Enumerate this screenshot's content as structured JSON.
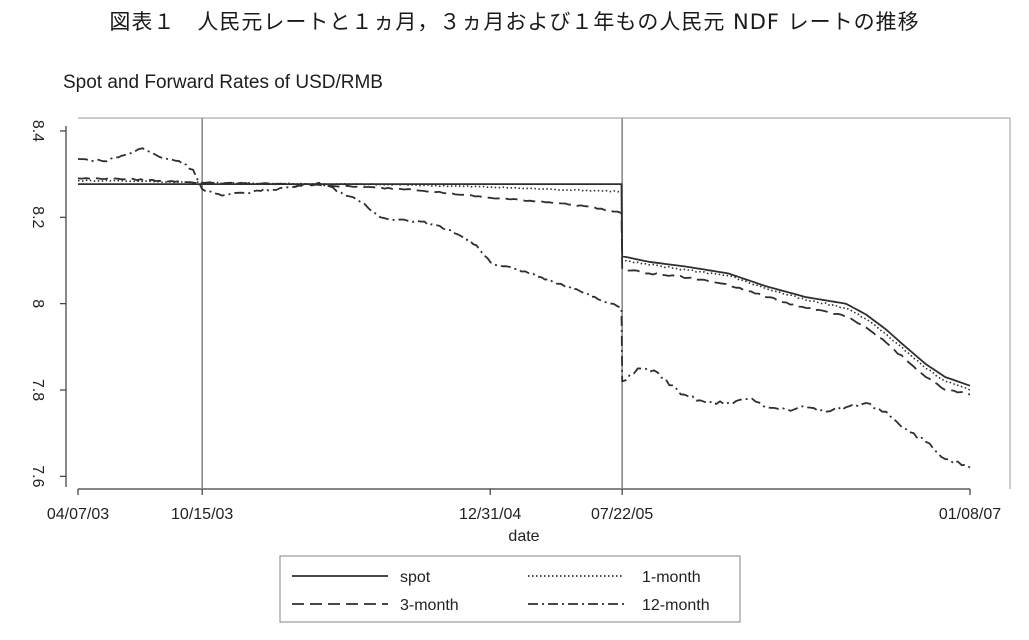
{
  "figure": {
    "caption": "図表１　人民元レートと１ヵ月，３ヵ月および１年もの人民元 NDF レートの推移"
  },
  "chart_data": {
    "type": "line",
    "title": "Spot and Forward Rates of USD/RMB",
    "xlabel": "date",
    "ylabel": "",
    "x_ticks": [
      "04/07/03",
      "10/15/03",
      "12/31/04",
      "07/22/05",
      "01/08/07"
    ],
    "y_ticks": [
      "7.6",
      "7.8",
      "8",
      "8.2",
      "8.4"
    ],
    "ylim": [
      7.58,
      8.43
    ],
    "xlim": [
      "2003-04-07",
      "2007-01-08"
    ],
    "vertical_reference_lines": [
      "10/15/03",
      "07/22/05"
    ],
    "grid": false,
    "legend_position": "bottom",
    "series": [
      {
        "name": "spot",
        "style": "solid",
        "points": [
          [
            "2003-04-07",
            8.277
          ],
          [
            "2003-10-15",
            8.277
          ],
          [
            "2004-06-01",
            8.277
          ],
          [
            "2005-01-01",
            8.277
          ],
          [
            "2005-07-21",
            8.277
          ],
          [
            "2005-07-22",
            8.11
          ],
          [
            "2005-09-01",
            8.097
          ],
          [
            "2005-11-01",
            8.085
          ],
          [
            "2006-01-01",
            8.07
          ],
          [
            "2006-03-01",
            8.04
          ],
          [
            "2006-05-01",
            8.015
          ],
          [
            "2006-07-01",
            8.0
          ],
          [
            "2006-08-01",
            7.975
          ],
          [
            "2006-09-01",
            7.94
          ],
          [
            "2006-10-01",
            7.9
          ],
          [
            "2006-11-01",
            7.86
          ],
          [
            "2006-12-01",
            7.83
          ],
          [
            "2007-01-08",
            7.81
          ]
        ]
      },
      {
        "name": "1-month",
        "style": "dotted",
        "points": [
          [
            "2003-04-07",
            8.285
          ],
          [
            "2003-06-01",
            8.285
          ],
          [
            "2003-10-15",
            8.28
          ],
          [
            "2004-03-01",
            8.278
          ],
          [
            "2004-09-01",
            8.275
          ],
          [
            "2005-01-01",
            8.27
          ],
          [
            "2005-04-01",
            8.265
          ],
          [
            "2005-07-21",
            8.26
          ],
          [
            "2005-07-22",
            8.1
          ],
          [
            "2005-09-01",
            8.09
          ],
          [
            "2005-11-01",
            8.078
          ],
          [
            "2006-01-01",
            8.065
          ],
          [
            "2006-03-01",
            8.035
          ],
          [
            "2006-05-01",
            8.008
          ],
          [
            "2006-07-01",
            7.99
          ],
          [
            "2006-08-01",
            7.965
          ],
          [
            "2006-09-01",
            7.93
          ],
          [
            "2006-10-01",
            7.89
          ],
          [
            "2006-11-01",
            7.85
          ],
          [
            "2006-12-01",
            7.82
          ],
          [
            "2007-01-08",
            7.8
          ]
        ]
      },
      {
        "name": "3-month",
        "style": "dashed",
        "points": [
          [
            "2003-04-07",
            8.29
          ],
          [
            "2003-06-01",
            8.29
          ],
          [
            "2003-10-15",
            8.28
          ],
          [
            "2004-03-01",
            8.277
          ],
          [
            "2004-09-01",
            8.265
          ],
          [
            "2005-01-01",
            8.245
          ],
          [
            "2005-04-01",
            8.235
          ],
          [
            "2005-06-01",
            8.225
          ],
          [
            "2005-07-21",
            8.21
          ],
          [
            "2005-07-22",
            8.08
          ],
          [
            "2005-09-01",
            8.07
          ],
          [
            "2005-11-01",
            8.06
          ],
          [
            "2006-01-01",
            8.045
          ],
          [
            "2006-03-01",
            8.015
          ],
          [
            "2006-05-01",
            7.99
          ],
          [
            "2006-07-01",
            7.97
          ],
          [
            "2006-08-01",
            7.945
          ],
          [
            "2006-09-01",
            7.91
          ],
          [
            "2006-10-01",
            7.87
          ],
          [
            "2006-11-01",
            7.83
          ],
          [
            "2006-12-01",
            7.8
          ],
          [
            "2007-01-08",
            7.79
          ]
        ]
      },
      {
        "name": "12-month",
        "style": "dash-dot",
        "points": [
          [
            "2003-04-07",
            8.335
          ],
          [
            "2003-05-15",
            8.33
          ],
          [
            "2003-06-20",
            8.345
          ],
          [
            "2003-07-15",
            8.36
          ],
          [
            "2003-08-10",
            8.34
          ],
          [
            "2003-09-10",
            8.33
          ],
          [
            "2003-10-01",
            8.31
          ],
          [
            "2003-10-15",
            8.265
          ],
          [
            "2003-11-15",
            8.25
          ],
          [
            "2004-01-01",
            8.26
          ],
          [
            "2004-03-01",
            8.27
          ],
          [
            "2004-04-15",
            8.28
          ],
          [
            "2004-06-15",
            8.235
          ],
          [
            "2004-07-15",
            8.2
          ],
          [
            "2004-09-15",
            8.19
          ],
          [
            "2004-11-01",
            8.17
          ],
          [
            "2004-12-10",
            8.135
          ],
          [
            "2005-01-01",
            8.095
          ],
          [
            "2005-03-01",
            8.07
          ],
          [
            "2005-05-01",
            8.04
          ],
          [
            "2005-06-15",
            8.01
          ],
          [
            "2005-07-21",
            7.99
          ],
          [
            "2005-07-22",
            7.82
          ],
          [
            "2005-08-15",
            7.85
          ],
          [
            "2005-09-15",
            7.84
          ],
          [
            "2005-10-20",
            7.79
          ],
          [
            "2005-12-01",
            7.77
          ],
          [
            "2006-01-01",
            7.77
          ],
          [
            "2006-02-01",
            7.78
          ],
          [
            "2006-03-01",
            7.76
          ],
          [
            "2006-04-01",
            7.755
          ],
          [
            "2006-05-01",
            7.76
          ],
          [
            "2006-06-01",
            7.75
          ],
          [
            "2006-07-01",
            7.76
          ],
          [
            "2006-08-01",
            7.77
          ],
          [
            "2006-09-01",
            7.75
          ],
          [
            "2006-10-01",
            7.71
          ],
          [
            "2006-11-01",
            7.68
          ],
          [
            "2006-12-01",
            7.64
          ],
          [
            "2007-01-08",
            7.62
          ]
        ]
      }
    ]
  },
  "legend": {
    "items": [
      {
        "name": "spot",
        "style": "solid"
      },
      {
        "name": "1-month",
        "style": "dotted"
      },
      {
        "name": "3-month",
        "style": "dashed"
      },
      {
        "name": "12-month",
        "style": "dash-dot"
      }
    ]
  },
  "colors": {
    "line": "#2f2f2f",
    "axis": "#3a3a3a",
    "frame": "#9a9a9a",
    "reference_line": "#8c8c8c"
  }
}
